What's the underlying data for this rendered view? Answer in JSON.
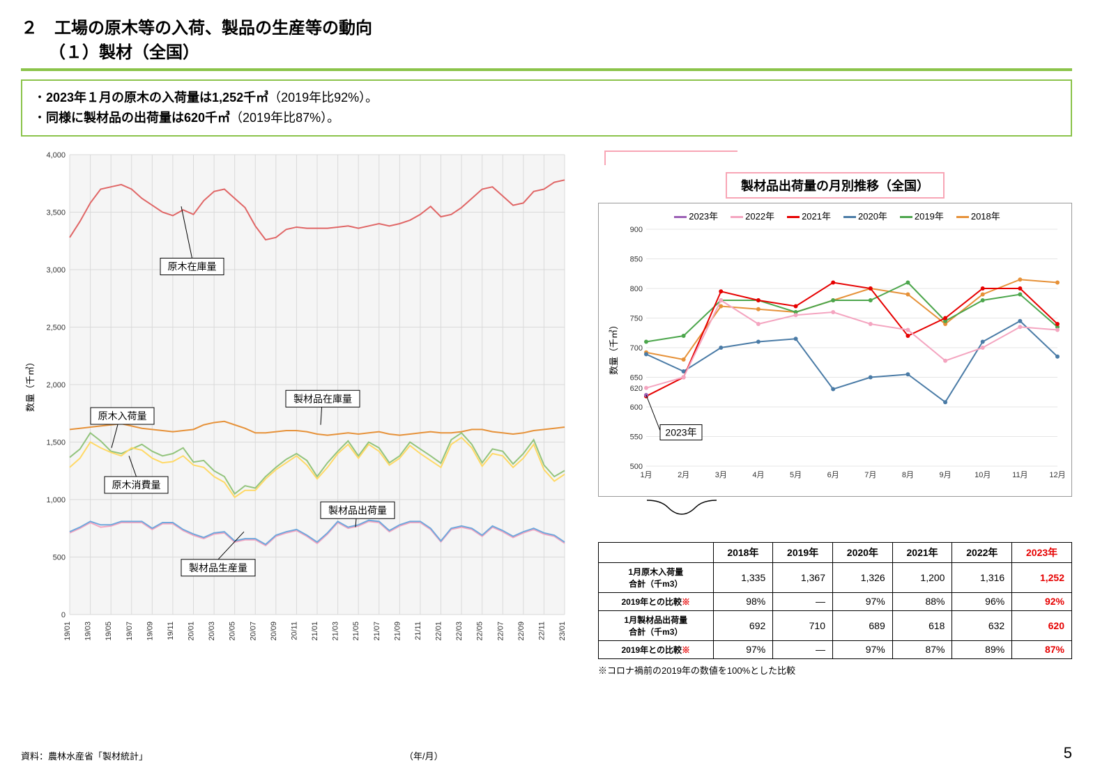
{
  "header": {
    "section_num": "２",
    "main_title": "工場の原木等の入荷、製品の生産等の動向",
    "sub_title": "（１）製材（全国）"
  },
  "summary": {
    "line1_pre": "・",
    "line1_bold": "2023年１月の原木の入荷量は1,252千㎥",
    "line1_post": "（2019年比92%）。",
    "line2_pre": "・",
    "line2_bold": "同様に製材品の出荷量は620千㎥",
    "line2_post": "（2019年比87%）。"
  },
  "main_chart": {
    "ylabel": "数量（千㎥）",
    "ylim": [
      0,
      4000
    ],
    "yticks": [
      0,
      500,
      1000,
      1500,
      2000,
      2500,
      3000,
      3500,
      4000
    ],
    "xticks": [
      "19/01",
      "19/03",
      "19/05",
      "19/07",
      "19/09",
      "19/11",
      "20/01",
      "20/03",
      "20/05",
      "20/07",
      "20/09",
      "20/11",
      "21/01",
      "21/03",
      "21/05",
      "21/07",
      "21/09",
      "21/11",
      "22/01",
      "22/03",
      "22/05",
      "22/07",
      "22/09",
      "22/11",
      "23/01"
    ],
    "colors": {
      "bg": "#f5f5f5",
      "grid": "#d9d9d9",
      "log_stock": "#e06666",
      "log_arrival": "#93c47d",
      "log_consume": "#ffd966",
      "prod_stock": "#e69138",
      "prod_ship": "#f4a5c0",
      "prod_prod": "#6fa8dc"
    },
    "labels": {
      "log_stock": "原木在庫量",
      "log_arrival": "原木入荷量",
      "log_consume": "原木消費量",
      "prod_stock": "製材品在庫量",
      "prod_ship": "製材品出荷量",
      "prod_prod": "製材品生産量"
    },
    "series": {
      "log_stock": [
        3280,
        3420,
        3580,
        3700,
        3720,
        3740,
        3700,
        3620,
        3560,
        3500,
        3470,
        3520,
        3480,
        3600,
        3680,
        3700,
        3620,
        3540,
        3380,
        3260,
        3280,
        3350,
        3370,
        3360,
        3360,
        3360,
        3370,
        3380,
        3360,
        3380,
        3400,
        3380,
        3400,
        3430,
        3480,
        3550,
        3460,
        3480,
        3540,
        3620,
        3700,
        3720,
        3640,
        3560,
        3580,
        3680,
        3700,
        3760,
        3780
      ],
      "log_arrival": [
        1367,
        1440,
        1580,
        1510,
        1420,
        1400,
        1440,
        1480,
        1420,
        1380,
        1400,
        1450,
        1326,
        1340,
        1250,
        1200,
        1050,
        1120,
        1100,
        1200,
        1280,
        1350,
        1400,
        1340,
        1200,
        1320,
        1420,
        1510,
        1380,
        1500,
        1450,
        1320,
        1380,
        1500,
        1440,
        1380,
        1316,
        1520,
        1580,
        1480,
        1320,
        1440,
        1420,
        1310,
        1400,
        1520,
        1300,
        1200,
        1252
      ],
      "log_consume": [
        1280,
        1360,
        1500,
        1450,
        1410,
        1380,
        1450,
        1430,
        1360,
        1320,
        1330,
        1380,
        1300,
        1280,
        1200,
        1150,
        1020,
        1080,
        1080,
        1180,
        1260,
        1320,
        1380,
        1300,
        1180,
        1280,
        1400,
        1480,
        1360,
        1480,
        1420,
        1300,
        1360,
        1470,
        1400,
        1340,
        1280,
        1480,
        1540,
        1450,
        1290,
        1400,
        1380,
        1280,
        1360,
        1480,
        1260,
        1160,
        1220
      ],
      "prod_stock": [
        1610,
        1620,
        1630,
        1640,
        1650,
        1660,
        1640,
        1620,
        1610,
        1600,
        1590,
        1600,
        1610,
        1650,
        1670,
        1680,
        1650,
        1620,
        1580,
        1580,
        1590,
        1600,
        1600,
        1590,
        1570,
        1560,
        1570,
        1580,
        1570,
        1580,
        1590,
        1570,
        1560,
        1570,
        1580,
        1590,
        1580,
        1580,
        1590,
        1610,
        1610,
        1590,
        1580,
        1570,
        1580,
        1600,
        1610,
        1620,
        1630
      ],
      "prod_ship": [
        710,
        750,
        800,
        760,
        770,
        800,
        800,
        800,
        740,
        790,
        790,
        730,
        689,
        660,
        700,
        710,
        630,
        650,
        650,
        600,
        680,
        710,
        730,
        680,
        618,
        700,
        800,
        750,
        770,
        810,
        800,
        720,
        770,
        800,
        800,
        740,
        632,
        740,
        760,
        740,
        680,
        760,
        720,
        670,
        710,
        740,
        700,
        680,
        620
      ],
      "prod_prod": [
        720,
        760,
        810,
        780,
        780,
        810,
        810,
        810,
        750,
        800,
        800,
        740,
        700,
        670,
        710,
        720,
        640,
        660,
        660,
        610,
        690,
        720,
        740,
        690,
        630,
        710,
        810,
        760,
        780,
        820,
        810,
        730,
        780,
        810,
        810,
        750,
        640,
        750,
        770,
        750,
        690,
        770,
        730,
        680,
        720,
        750,
        710,
        690,
        630
      ]
    }
  },
  "small_chart": {
    "title": "製材品出荷量の月別推移（全国）",
    "ylabel": "数量（千㎥）",
    "ylim": [
      500,
      900
    ],
    "yticks": [
      500,
      550,
      600,
      650,
      700,
      750,
      800,
      850,
      900
    ],
    "xticks": [
      "1月",
      "2月",
      "3月",
      "4月",
      "5月",
      "6月",
      "7月",
      "8月",
      "9月",
      "10月",
      "11月",
      "12月"
    ],
    "point_label": "620",
    "year_box": "2023年",
    "legend": [
      {
        "label": "2023年",
        "color": "#9b5fb5"
      },
      {
        "label": "2022年",
        "color": "#f4a5c0"
      },
      {
        "label": "2021年",
        "color": "#e60000"
      },
      {
        "label": "2020年",
        "color": "#4a7ba6"
      },
      {
        "label": "2019年",
        "color": "#4ca64c"
      },
      {
        "label": "2018年",
        "color": "#e69138"
      }
    ],
    "series": {
      "y2018": [
        692,
        680,
        770,
        765,
        760,
        780,
        800,
        790,
        740,
        790,
        815,
        810
      ],
      "y2019": [
        710,
        720,
        780,
        780,
        760,
        780,
        780,
        810,
        745,
        780,
        790,
        735
      ],
      "y2020": [
        689,
        660,
        700,
        710,
        715,
        630,
        650,
        655,
        608,
        710,
        745,
        685
      ],
      "y2021": [
        618,
        650,
        795,
        780,
        770,
        810,
        800,
        720,
        750,
        800,
        800,
        740
      ],
      "y2022": [
        632,
        650,
        780,
        740,
        755,
        760,
        740,
        730,
        678,
        700,
        735,
        730
      ],
      "y2023": [
        620
      ]
    }
  },
  "table": {
    "headers": [
      "",
      "2018年",
      "2019年",
      "2020年",
      "2021年",
      "2022年",
      "2023年"
    ],
    "rows": [
      {
        "label": "1月原木入荷量\n合計（千m3）",
        "vals": [
          "1,335",
          "1,367",
          "1,326",
          "1,200",
          "1,316",
          "1,252"
        ]
      },
      {
        "label": "2019年との比較",
        "note": "※",
        "vals": [
          "98%",
          "—",
          "97%",
          "88%",
          "96%",
          "92%"
        ]
      },
      {
        "label": "1月製材品出荷量\n合計（千m3）",
        "vals": [
          "692",
          "710",
          "689",
          "618",
          "632",
          "620"
        ]
      },
      {
        "label": "2019年との比較",
        "note": "※",
        "vals": [
          "97%",
          "—",
          "97%",
          "87%",
          "89%",
          "87%"
        ]
      }
    ],
    "footnote": "※コロナ禍前の2019年の数値を100%とした比較"
  },
  "footer": {
    "source": "資料：農林水産省「製材統計」",
    "xaxis_label": "（年/月）",
    "page": "5"
  }
}
